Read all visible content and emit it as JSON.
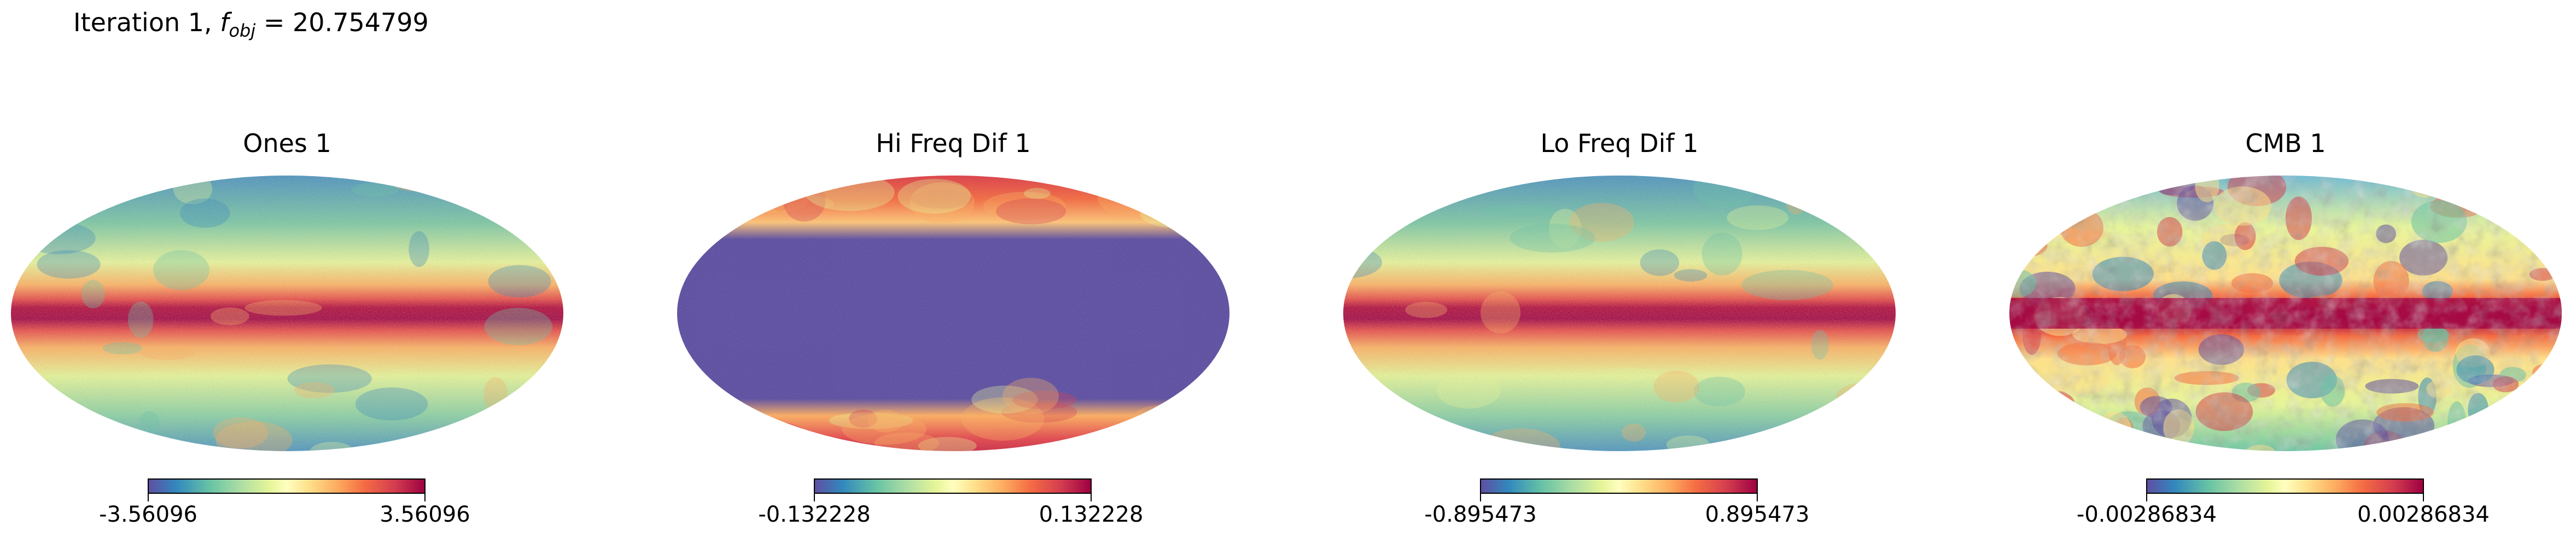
{
  "suptitle": {
    "prefix": "Iteration 1, ",
    "f": "f",
    "sub": "obj",
    "eq": " = 20.754799"
  },
  "colormap": "Spectral_r",
  "colors": {
    "low": "#5e4fa2",
    "mid": "#ffffbf",
    "high": "#9e0142"
  },
  "panels": [
    {
      "title": "Ones 1",
      "min_label": "-3.56096",
      "max_label": "3.56096",
      "min": -3.56096,
      "max": 3.56096,
      "pattern": "dust"
    },
    {
      "title": "Hi Freq Dif 1",
      "min_label": "-0.132228",
      "max_label": "0.132228",
      "min": -0.132228,
      "max": 0.132228,
      "pattern": "saturated"
    },
    {
      "title": "Lo Freq Dif 1",
      "min_label": "-0.895473",
      "max_label": "0.895473",
      "min": -0.895473,
      "max": 0.895473,
      "pattern": "dust"
    },
    {
      "title": "CMB 1",
      "min_label": "-0.00286834",
      "max_label": "0.00286834",
      "min": -0.00286834,
      "max": 0.00286834,
      "pattern": "cmb"
    }
  ]
}
